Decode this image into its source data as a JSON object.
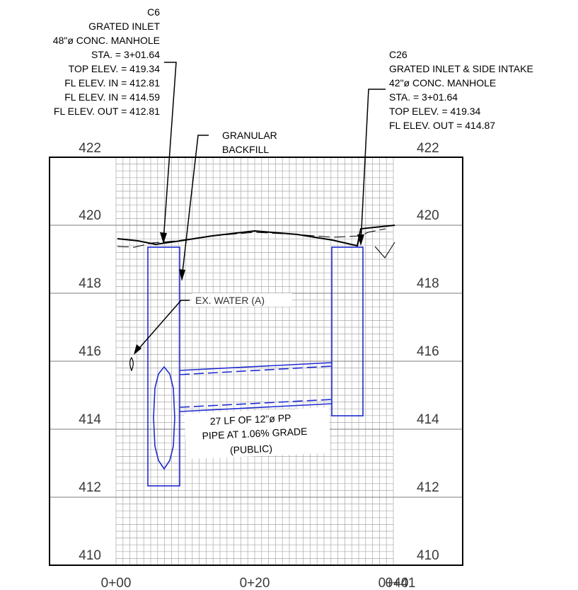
{
  "profile": {
    "elevation_labels": [
      "422",
      "420",
      "418",
      "416",
      "414",
      "412",
      "410"
    ],
    "station_labels": [
      "0+00",
      "0+20",
      "0+40",
      "0+41"
    ],
    "elev_min": 410,
    "elev_max": 422,
    "sta_max": 41
  },
  "manhole_c6": {
    "lines": [
      "C6",
      "GRATED INLET",
      "48\"ø CONC. MANHOLE",
      "STA. = 3+01.64",
      "TOP ELEV. = 419.34",
      "FL ELEV. IN = 412.81",
      "FL ELEV. IN = 414.59",
      "FL ELEV. OUT = 412.81"
    ]
  },
  "manhole_c26": {
    "lines": [
      "C26",
      "GRATED INLET & SIDE INTAKE",
      "42\"ø CONC. MANHOLE",
      "STA. = 3+01.64",
      "TOP ELEV. = 419.34",
      "FL ELEV. OUT = 414.87"
    ]
  },
  "backfill": {
    "lines": [
      "GRANULAR",
      "BACKFILL"
    ]
  },
  "water": {
    "label": "EX. WATER (A)"
  },
  "pipe": {
    "lines": [
      "27 LF OF 12\"ø PP",
      "PIPE AT 1.06% GRADE",
      "(PUBLIC)"
    ]
  },
  "colors": {
    "structure": "#1f2bd1",
    "grid": "#9a9a9a",
    "ink": "#000000"
  }
}
